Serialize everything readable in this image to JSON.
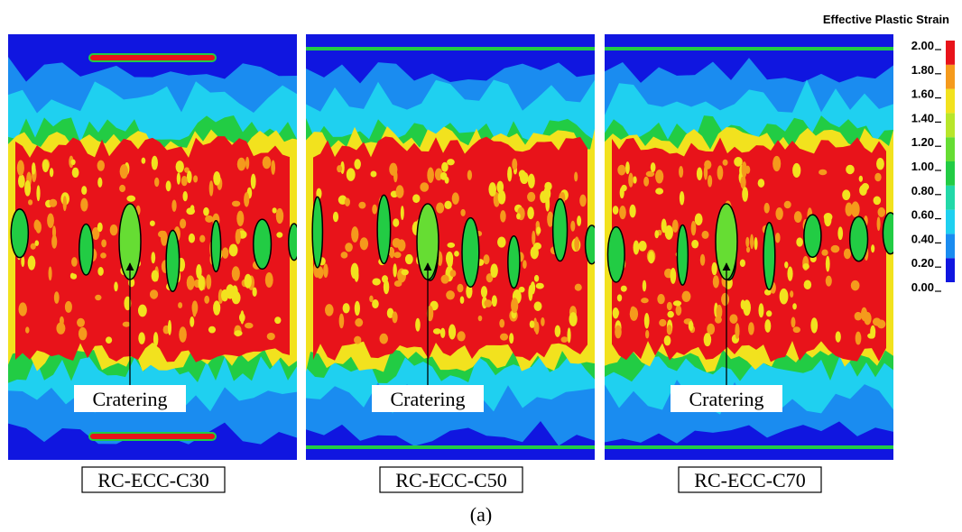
{
  "panels": [
    {
      "label": "RC-ECC-C30",
      "annotation": "Cratering"
    },
    {
      "label": "RC-ECC-C50",
      "annotation": "Cratering"
    },
    {
      "label": "RC-ECC-C70",
      "annotation": "Cratering"
    }
  ],
  "colorbar": {
    "title": "Effective Plastic Strain",
    "ticks": [
      {
        "value": 0,
        "label": "0.00"
      },
      {
        "value": 0.2,
        "label": "0.20"
      },
      {
        "value": 0.4,
        "label": "0.40"
      },
      {
        "value": 0.6,
        "label": "0.60"
      },
      {
        "value": 0.8,
        "label": "0.80"
      },
      {
        "value": 1,
        "label": "1.00"
      },
      {
        "value": 1.2,
        "label": "1.20"
      },
      {
        "value": 1.4,
        "label": "1.40"
      },
      {
        "value": 1.6,
        "label": "1.60"
      },
      {
        "value": 1.8,
        "label": "1.80"
      },
      {
        "value": 2,
        "label": "2.00"
      }
    ],
    "colors": [
      "#1016e0",
      "#1a8cf0",
      "#1fd0f0",
      "#22d8a8",
      "#22cc44",
      "#66dd33",
      "#b8e62a",
      "#f2e21e",
      "#f59a1c",
      "#e8131a"
    ]
  },
  "caption": "(a)"
}
